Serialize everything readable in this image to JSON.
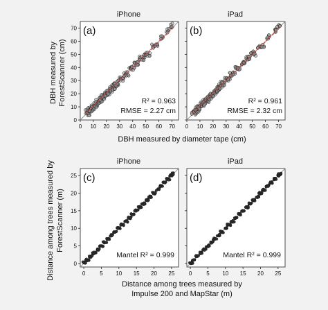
{
  "figure": {
    "top_ylabel_line1": "DBH measured by",
    "top_ylabel_line2": "ForestScanner (cm)",
    "top_xlabel": "DBH measured by diameter tape (cm)",
    "bottom_ylabel_line1": "Distance among trees measured by",
    "bottom_ylabel_line2": "ForestScanner (m)",
    "bottom_xlabel_line1": "Distance among trees measured by",
    "bottom_xlabel_line2": "Impulse 200 and MapStar (m)"
  },
  "colors": {
    "points_fill": "#9a9a9a",
    "points_stroke": "#1a1a1a",
    "reference_line": "#8a8a8a",
    "fit_line": "#e0413b",
    "background": "#f2f2f2",
    "panel_bg": "#ffffff"
  },
  "chart_data": [
    {
      "id": "a",
      "type": "scatter",
      "panel_label": "(a)",
      "title": "iPhone",
      "stat_line1": "R² = 0.963",
      "stat_line2": "RMSE = 2.27 cm",
      "xlim": [
        0,
        75
      ],
      "ylim": [
        0,
        75
      ],
      "xticks": [
        0,
        10,
        20,
        30,
        40,
        50,
        60,
        70
      ],
      "yticks": [
        0,
        10,
        20,
        30,
        40,
        50,
        60,
        70
      ],
      "show_xticklabels": true,
      "show_yticklabels": true,
      "reference_line": "1:1",
      "fit_line": {
        "slope": 0.98,
        "intercept": 0.6
      },
      "points": [
        [
          5,
          6
        ],
        [
          6,
          5
        ],
        [
          7,
          8
        ],
        [
          8,
          7
        ],
        [
          9,
          10
        ],
        [
          10,
          9
        ],
        [
          11,
          12
        ],
        [
          12,
          11
        ],
        [
          13,
          14
        ],
        [
          14,
          13
        ],
        [
          15,
          16
        ],
        [
          16,
          15
        ],
        [
          17,
          18
        ],
        [
          18,
          17
        ],
        [
          19,
          20
        ],
        [
          20,
          19
        ],
        [
          21,
          22
        ],
        [
          22,
          21
        ],
        [
          23,
          24
        ],
        [
          24,
          23
        ],
        [
          25,
          26
        ],
        [
          26,
          25
        ],
        [
          27,
          28
        ],
        [
          28,
          27
        ],
        [
          30,
          31
        ],
        [
          32,
          31
        ],
        [
          34,
          35
        ],
        [
          36,
          35
        ],
        [
          38,
          39
        ],
        [
          40,
          39
        ],
        [
          42,
          43
        ],
        [
          44,
          43
        ],
        [
          46,
          47
        ],
        [
          48,
          47
        ],
        [
          50,
          51
        ],
        [
          52,
          50
        ],
        [
          55,
          56
        ],
        [
          58,
          57
        ],
        [
          62,
          63
        ],
        [
          67,
          68
        ],
        [
          70,
          72
        ]
      ],
      "raw_note": null
    },
    {
      "id": "b",
      "type": "scatter",
      "panel_label": "(b)",
      "title": "iPad",
      "stat_line1": "R² = 0.961",
      "stat_line2": "RMSE = 2.32 cm",
      "xlim": [
        0,
        75
      ],
      "ylim": [
        0,
        75
      ],
      "xticks": [
        0,
        10,
        20,
        30,
        40,
        50,
        60,
        70
      ],
      "yticks": [
        0,
        10,
        20,
        30,
        40,
        50,
        60,
        70
      ],
      "show_xticklabels": true,
      "show_yticklabels": false,
      "reference_line": "1:1",
      "fit_line": {
        "slope": 0.98,
        "intercept": 0.6
      },
      "points": [
        [
          5,
          6
        ],
        [
          6,
          5
        ],
        [
          7,
          8
        ],
        [
          8,
          7
        ],
        [
          9,
          10
        ],
        [
          10,
          9
        ],
        [
          11,
          12
        ],
        [
          12,
          11
        ],
        [
          13,
          14
        ],
        [
          14,
          13
        ],
        [
          15,
          16
        ],
        [
          16,
          15
        ],
        [
          17,
          18
        ],
        [
          18,
          17
        ],
        [
          19,
          20
        ],
        [
          20,
          19
        ],
        [
          21,
          22
        ],
        [
          22,
          21
        ],
        [
          23,
          24
        ],
        [
          24,
          23
        ],
        [
          25,
          26
        ],
        [
          26,
          25
        ],
        [
          27,
          28
        ],
        [
          28,
          27
        ],
        [
          30,
          31
        ],
        [
          32,
          31
        ],
        [
          34,
          35
        ],
        [
          36,
          35
        ],
        [
          38,
          39
        ],
        [
          40,
          39
        ],
        [
          42,
          43
        ],
        [
          44,
          43
        ],
        [
          46,
          47
        ],
        [
          48,
          47
        ],
        [
          50,
          51
        ],
        [
          52,
          50
        ],
        [
          55,
          56
        ],
        [
          58,
          57
        ],
        [
          62,
          63
        ],
        [
          67,
          68
        ],
        [
          70,
          71
        ]
      ],
      "raw_note": null
    },
    {
      "id": "c",
      "type": "scatter",
      "panel_label": "(c)",
      "title": "iPhone",
      "stat_line1": "Mantel R² = 0.999",
      "stat_line2": "",
      "xlim": [
        -1,
        27
      ],
      "ylim": [
        -1,
        27
      ],
      "xticks": [
        0,
        5,
        10,
        15,
        20,
        25
      ],
      "yticks": [
        0,
        5,
        10,
        15,
        20,
        25
      ],
      "show_xticklabels": true,
      "show_yticklabels": true,
      "reference_line": "1:1",
      "fit_line": null,
      "points": [
        [
          0.2,
          0.2
        ],
        [
          1,
          1
        ],
        [
          2,
          2
        ],
        [
          3,
          3
        ],
        [
          4,
          4
        ],
        [
          5,
          5
        ],
        [
          6,
          6
        ],
        [
          7,
          7
        ],
        [
          8,
          8
        ],
        [
          9,
          9
        ],
        [
          10,
          10
        ],
        [
          11,
          11
        ],
        [
          12,
          12
        ],
        [
          13,
          13
        ],
        [
          14,
          14
        ],
        [
          15,
          15
        ],
        [
          16,
          16
        ],
        [
          17,
          17
        ],
        [
          18,
          18
        ],
        [
          19,
          19
        ],
        [
          20,
          20
        ],
        [
          21,
          21
        ],
        [
          22,
          22
        ],
        [
          23,
          23
        ],
        [
          24,
          24
        ],
        [
          25,
          25
        ],
        [
          25.5,
          25.5
        ]
      ],
      "raw_note": null
    },
    {
      "id": "d",
      "type": "scatter",
      "panel_label": "(d)",
      "title": "iPad",
      "stat_line1": "Mantel R² = 0.999",
      "stat_line2": "",
      "xlim": [
        -1,
        27
      ],
      "ylim": [
        -1,
        27
      ],
      "xticks": [
        0,
        5,
        10,
        15,
        20,
        25
      ],
      "yticks": [
        0,
        5,
        10,
        15,
        20,
        25
      ],
      "show_xticklabels": true,
      "show_yticklabels": false,
      "reference_line": "1:1",
      "fit_line": null,
      "points": [
        [
          0.2,
          0.2
        ],
        [
          1,
          1
        ],
        [
          2,
          2
        ],
        [
          3,
          3
        ],
        [
          4,
          4
        ],
        [
          5,
          5
        ],
        [
          6,
          6
        ],
        [
          7,
          7
        ],
        [
          8,
          8
        ],
        [
          9,
          9
        ],
        [
          10,
          10
        ],
        [
          11,
          11
        ],
        [
          12,
          12
        ],
        [
          13,
          13
        ],
        [
          14,
          14
        ],
        [
          15,
          15
        ],
        [
          16,
          16
        ],
        [
          17,
          17
        ],
        [
          18,
          18
        ],
        [
          19,
          19
        ],
        [
          20,
          20
        ],
        [
          21,
          21
        ],
        [
          22,
          22
        ],
        [
          23,
          23
        ],
        [
          24,
          24
        ],
        [
          25,
          25
        ],
        [
          25.5,
          25.5
        ]
      ],
      "raw_note": null
    }
  ]
}
